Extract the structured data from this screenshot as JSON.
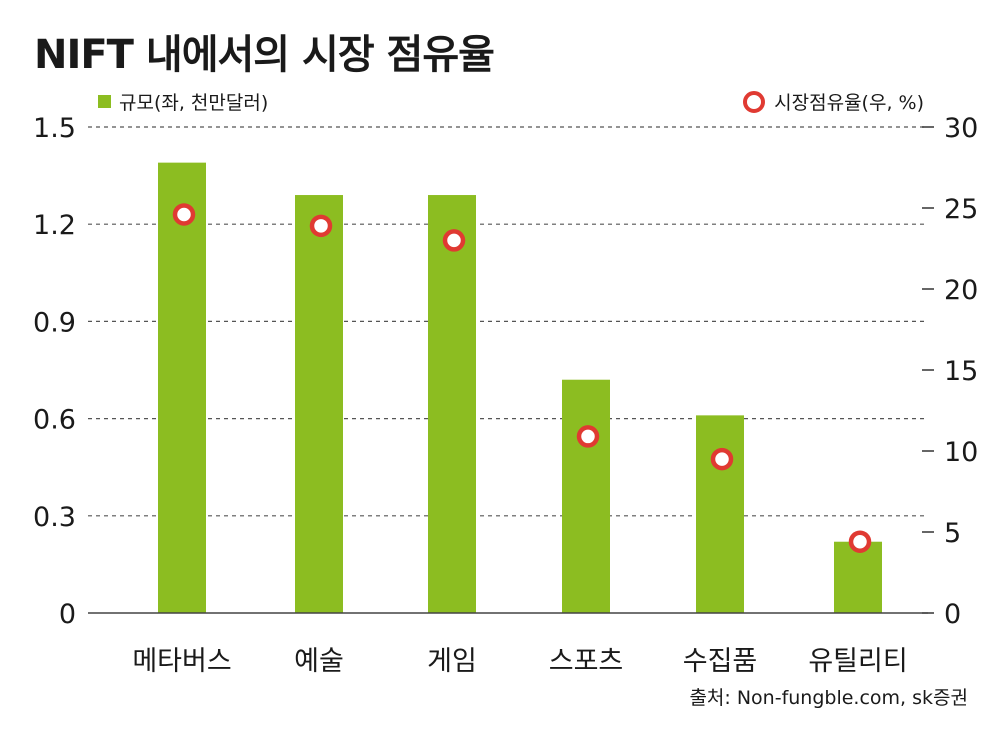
{
  "chart_data": {
    "type": "bar",
    "title": "NIFT 내에서의 시장 점유율",
    "categories": [
      "메타버스",
      "예술",
      "게임",
      "스포츠",
      "수집품",
      "유틸리티"
    ],
    "series": [
      {
        "name": "규모(좌, 천만달러)",
        "axis": "left",
        "kind": "bar",
        "values": [
          1.39,
          1.29,
          1.29,
          0.72,
          0.61,
          0.22
        ]
      },
      {
        "name": "시장점유율(우, %)",
        "axis": "right",
        "kind": "marker",
        "values": [
          24.6,
          23.9,
          23.0,
          10.9,
          9.5,
          4.4
        ]
      }
    ],
    "y_left": {
      "lim": [
        0,
        1.5
      ],
      "ticks": [
        "0",
        "0.3",
        "0.6",
        "0.9",
        "1.2",
        "1.5"
      ],
      "tick_values": [
        0,
        0.3,
        0.6,
        0.9,
        1.2,
        1.5
      ]
    },
    "y_right": {
      "lim": [
        0,
        30
      ],
      "ticks": [
        "0",
        "5",
        "10",
        "15",
        "20",
        "25",
        "30"
      ],
      "tick_values": [
        0,
        5,
        10,
        15,
        20,
        25,
        30
      ]
    },
    "colors": {
      "bar": "#8cbd21",
      "marker": "#e03a32",
      "grid": "#555555"
    },
    "grid": true
  },
  "legend": {
    "left_label": "규모(좌, 천만달러)",
    "right_label": "시장점유율(우, %)"
  },
  "source": "출처: Non-fungble.com, sk증권"
}
